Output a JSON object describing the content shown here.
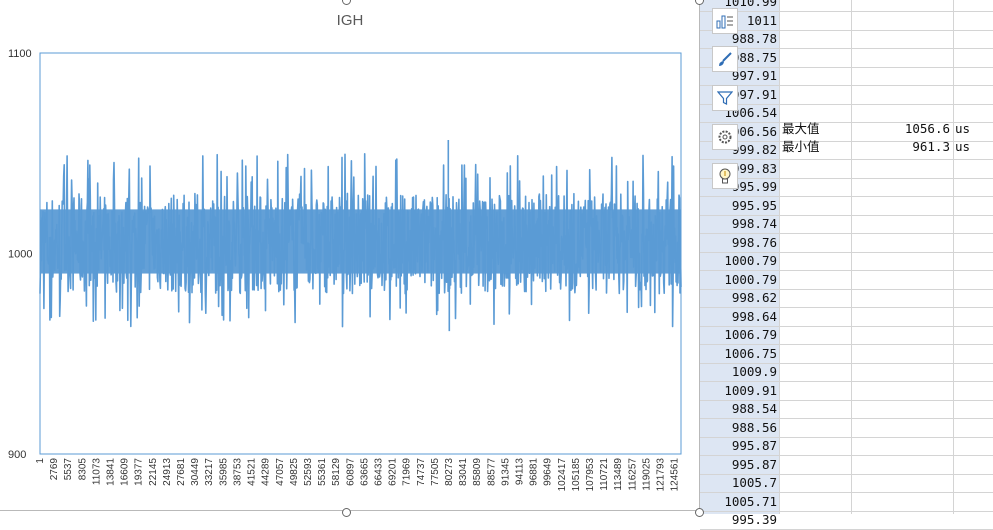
{
  "sheet": {
    "colB_values": [
      "1010.99",
      "1011",
      "988.78",
      "988.75",
      "997.91",
      "997.91",
      "1006.54",
      "1006.56",
      "999.82",
      "999.83",
      "995.99",
      "995.95",
      "998.74",
      "998.76",
      "1000.79",
      "1000.79",
      "998.62",
      "998.64",
      "1006.79",
      "1006.75",
      "1009.9",
      "1009.91",
      "988.54",
      "988.56",
      "995.87",
      "995.87",
      "1005.7",
      "1005.71",
      "995.39"
    ],
    "stats": [
      {
        "label": "最大值",
        "value": "1056.6",
        "unit": "us"
      },
      {
        "label": "最小值",
        "value": "961.3",
        "unit": "us"
      }
    ]
  },
  "chart_toolbar": {
    "icons": [
      "chart-elements-icon",
      "chart-styles-icon",
      "chart-filters-icon",
      "settings-icon",
      "lightbulb-icon"
    ]
  },
  "chart_data": {
    "type": "line",
    "title": "IGH",
    "ylim": [
      900,
      1100
    ],
    "yticks": [
      900,
      1000,
      1100
    ],
    "xlabels": [
      "1",
      "2769",
      "5537",
      "8305",
      "11073",
      "13841",
      "16609",
      "19377",
      "22145",
      "24913",
      "27681",
      "30449",
      "33217",
      "35985",
      "38753",
      "41521",
      "44289",
      "47057",
      "49825",
      "52593",
      "55361",
      "58129",
      "60897",
      "63665",
      "66433",
      "69201",
      "71969",
      "74737",
      "77505",
      "80273",
      "83041",
      "85809",
      "88577",
      "91345",
      "94113",
      "96881",
      "99649",
      "102417",
      "105185",
      "107953",
      "110721",
      "113489",
      "116257",
      "119025",
      "121793",
      "124561"
    ],
    "series": [
      {
        "color": "#5b9bd5",
        "x_range": [
          1,
          126000
        ],
        "center": 1005,
        "band_low": 980,
        "band_high": 1030,
        "max": 1056.6,
        "min": 961.3
      }
    ],
    "legend": "none",
    "grid": false
  }
}
